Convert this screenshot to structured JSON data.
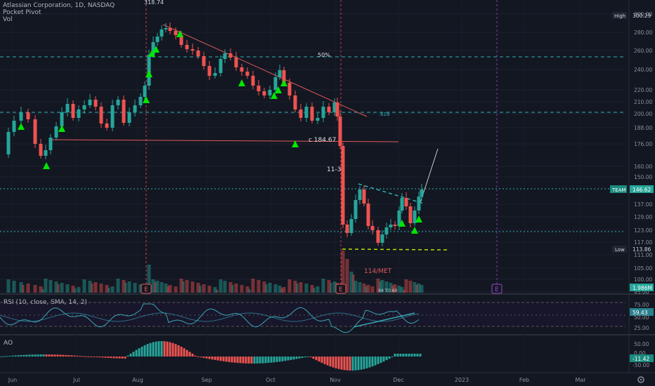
{
  "header": {
    "title": "Atlassian Corporation, 1D, NASDAQ",
    "indicators": [
      "Pocket Pivot",
      "Vol"
    ]
  },
  "price_axis": {
    "ticks": [
      "300.00",
      "280.00",
      "260.00",
      "240.00",
      "220.00",
      "210.00",
      "200.00",
      "188.00",
      "176.00",
      "160.00",
      "150.00",
      "137.00",
      "129.00",
      "123.00",
      "117.00",
      "111.00",
      "105.00",
      "100.00",
      "95.00"
    ],
    "badges": {
      "high_label": "High",
      "high_value": "300.29",
      "symbol": "TEAM",
      "last_value": "146.62",
      "low_label": "Low",
      "low_value": "113.86",
      "volume_value": "1.986M"
    }
  },
  "chart_annotations": {
    "peak_price": "318.74",
    "fib_50": "50%",
    "fib_618": ".618",
    "support_label": "c 184.67",
    "earnings_date": "11-3",
    "target_label": "114/MET",
    "volume_label": "94 TO 60",
    "earnings_markers": [
      "E",
      "E",
      "E"
    ]
  },
  "rsi_panel": {
    "title": "RSI (10, close, SMA, 14, 2)",
    "ticks": [
      "75.00",
      "50.00",
      "25.00"
    ],
    "value": "59.43"
  },
  "ao_panel": {
    "title": "AO",
    "ticks": [
      "50.00",
      "0.00",
      "-50.00"
    ],
    "value": "-11.42"
  },
  "time_axis": [
    "Jun",
    "Jul",
    "Aug",
    "Sep",
    "Oct",
    "Nov",
    "Dec",
    "2023",
    "Feb",
    "Mar"
  ],
  "colors": {
    "background": "#131722",
    "bull": "#26a69a",
    "bear": "#ef5350",
    "pivot": "#00e600",
    "trendline": "#e05a5a",
    "fib": "#2cb3b3"
  }
}
